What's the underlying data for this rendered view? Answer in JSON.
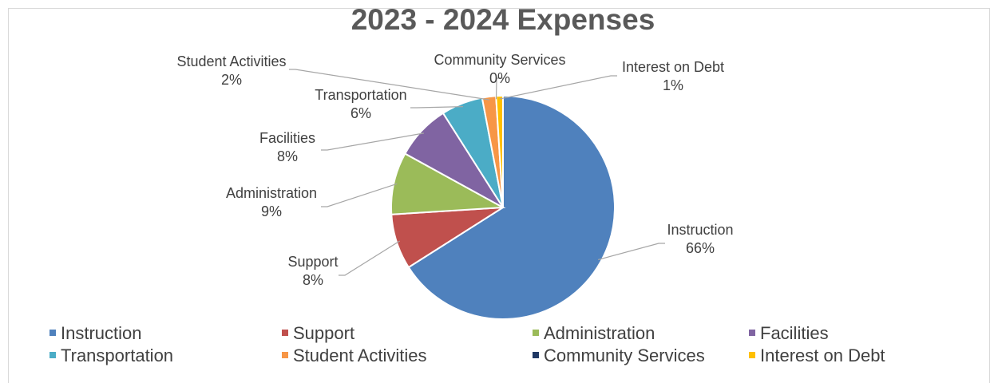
{
  "chart_data": {
    "type": "pie",
    "title": "2023 - 2024 Expenses",
    "legend_position": "bottom",
    "categories": [
      "Instruction",
      "Support",
      "Administration",
      "Facilities",
      "Transportation",
      "Student Activities",
      "Community Services",
      "Interest on Debt"
    ],
    "values": [
      66,
      8,
      9,
      8,
      6,
      2,
      0,
      1
    ],
    "value_labels": [
      "66%",
      "8%",
      "9%",
      "8%",
      "6%",
      "2%",
      "0%",
      "1%"
    ],
    "colors": [
      "#4f81bd",
      "#c0504d",
      "#9bbb59",
      "#8064a2",
      "#4bacc6",
      "#f79646",
      "#1f3864",
      "#ffc000"
    ]
  }
}
